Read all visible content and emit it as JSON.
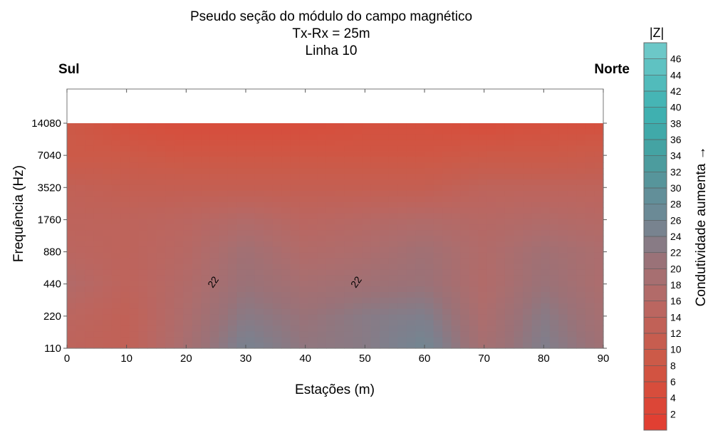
{
  "chart_data": {
    "type": "heatmap",
    "title": [
      "Pseudo seção do módulo do campo magnético",
      "Tx-Rx = 25m",
      "Linha 10"
    ],
    "left_label": "Sul",
    "right_label": "Norte",
    "xlabel": "Estações (m)",
    "ylabel": "Frequência (Hz)",
    "x_ticks": [
      0,
      10,
      20,
      30,
      40,
      50,
      60,
      70,
      80,
      90
    ],
    "xlim": [
      0,
      90
    ],
    "y_ticks": [
      "14080",
      "7040",
      "3520",
      "1760",
      "880",
      "440",
      "220",
      "110"
    ],
    "y_scale": "log2",
    "colorbar": {
      "title": "|Z|",
      "side_label": "Condutividade aumenta",
      "arrow": "→",
      "ticks": [
        2,
        4,
        6,
        8,
        10,
        12,
        14,
        16,
        18,
        20,
        22,
        24,
        26,
        28,
        30,
        32,
        34,
        36,
        38,
        40,
        42,
        44,
        46
      ],
      "min": 0,
      "max": 48,
      "colors": [
        "#e43b2f",
        "#dc4637",
        "#d5503e",
        "#cc5a48",
        "#c45f52",
        "#bb6660",
        "#ad6d6d",
        "#9a7278",
        "#7f7f8c",
        "#6b8a96",
        "#5d929a",
        "#4c9c9e",
        "#40a6a6",
        "#3fb0b0",
        "#4ab8b8",
        "#5fc2c2",
        "#72cbcb"
      ]
    },
    "contour_labels": [
      {
        "x": 25,
        "freq": 440,
        "text": "22"
      },
      {
        "x": 49,
        "freq": 440,
        "text": "22"
      }
    ],
    "grid_x": [
      0,
      10,
      20,
      30,
      40,
      50,
      60,
      70,
      80,
      90
    ],
    "grid_y": [
      "14080",
      "7040",
      "3520",
      "1760",
      "880",
      "440",
      "220",
      "110"
    ],
    "values": [
      [
        9,
        6,
        5,
        5,
        5,
        6,
        6,
        5,
        6,
        6
      ],
      [
        9,
        9,
        8,
        8,
        8,
        8,
        8,
        9,
        9,
        10
      ],
      [
        13,
        12,
        12,
        12,
        12,
        12,
        12,
        14,
        14,
        14
      ],
      [
        14,
        14,
        15,
        17,
        15,
        16,
        17,
        16,
        17,
        16
      ],
      [
        15,
        14,
        16,
        20,
        17,
        18,
        20,
        17,
        20,
        18
      ],
      [
        17,
        14,
        17,
        21,
        19,
        20,
        21,
        17,
        21,
        18
      ],
      [
        15,
        13,
        18,
        23,
        21,
        23,
        24,
        18,
        23,
        19
      ],
      [
        14,
        13,
        19,
        25,
        22,
        23,
        26,
        19,
        24,
        20
      ]
    ]
  }
}
